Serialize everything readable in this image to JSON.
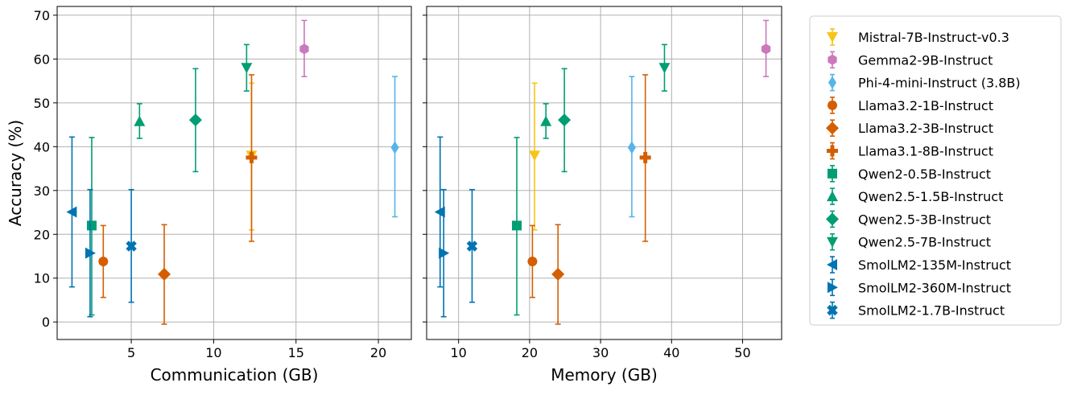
{
  "chart_data": {
    "type": "scatter",
    "error_bars": true,
    "grid": true,
    "ylabel": "Accuracy (%)",
    "ylim": [
      -4,
      72
    ],
    "yticks": [
      0,
      10,
      20,
      30,
      40,
      50,
      60,
      70
    ],
    "legend_position": "right, outside",
    "panels": [
      {
        "xlabel": "Communication (GB)",
        "xlim": [
          0.5,
          22
        ],
        "xticks": [
          5,
          10,
          15,
          20
        ],
        "points": [
          {
            "series": "Mistral-7B-Instruct-v0.3",
            "x": 12.3,
            "y": 38.0,
            "lo": 21.0,
            "hi": 54.5
          },
          {
            "series": "Gemma2-9B-Instruct",
            "x": 15.5,
            "y": 62.3,
            "lo": 56.0,
            "hi": 68.8
          },
          {
            "series": "Phi-4-mini-Instruct (3.8B)",
            "x": 21.0,
            "y": 39.8,
            "lo": 24.0,
            "hi": 56.0
          },
          {
            "series": "Llama3.2-1B-Instruct",
            "x": 3.3,
            "y": 13.8,
            "lo": 5.6,
            "hi": 22.0
          },
          {
            "series": "Llama3.2-3B-Instruct",
            "x": 7.0,
            "y": 10.9,
            "lo": -0.5,
            "hi": 22.2
          },
          {
            "series": "Llama3.1-8B-Instruct",
            "x": 12.3,
            "y": 37.5,
            "lo": 18.4,
            "hi": 56.4
          },
          {
            "series": "Qwen2-0.5B-Instruct",
            "x": 2.6,
            "y": 22.0,
            "lo": 1.6,
            "hi": 42.1
          },
          {
            "series": "Qwen2.5-1.5B-Instruct",
            "x": 5.5,
            "y": 45.8,
            "lo": 41.9,
            "hi": 49.8
          },
          {
            "series": "Qwen2.5-3B-Instruct",
            "x": 8.9,
            "y": 46.1,
            "lo": 34.3,
            "hi": 57.8
          },
          {
            "series": "Qwen2.5-7B-Instruct",
            "x": 12.0,
            "y": 58.0,
            "lo": 52.7,
            "hi": 63.3
          },
          {
            "series": "SmolLM2-135M-Instruct",
            "x": 1.4,
            "y": 25.1,
            "lo": 8.0,
            "hi": 42.2
          },
          {
            "series": "SmolLM2-360M-Instruct",
            "x": 2.5,
            "y": 15.7,
            "lo": 1.2,
            "hi": 30.2
          },
          {
            "series": "SmolLM2-1.7B-Instruct",
            "x": 5.0,
            "y": 17.3,
            "lo": 4.5,
            "hi": 30.2
          }
        ]
      },
      {
        "xlabel": "Memory (GB)",
        "xlim": [
          5.5,
          55.5
        ],
        "xticks": [
          10,
          20,
          30,
          40,
          50
        ],
        "points": [
          {
            "series": "Mistral-7B-Instruct-v0.3",
            "x": 20.7,
            "y": 38.0,
            "lo": 21.0,
            "hi": 54.5
          },
          {
            "series": "Gemma2-9B-Instruct",
            "x": 53.3,
            "y": 62.3,
            "lo": 56.0,
            "hi": 68.8
          },
          {
            "series": "Phi-4-mini-Instruct (3.8B)",
            "x": 34.4,
            "y": 39.8,
            "lo": 24.0,
            "hi": 56.0
          },
          {
            "series": "Llama3.2-1B-Instruct",
            "x": 20.4,
            "y": 13.8,
            "lo": 5.6,
            "hi": 22.0
          },
          {
            "series": "Llama3.2-3B-Instruct",
            "x": 24.0,
            "y": 10.9,
            "lo": -0.5,
            "hi": 22.2
          },
          {
            "series": "Llama3.1-8B-Instruct",
            "x": 36.3,
            "y": 37.5,
            "lo": 18.4,
            "hi": 56.4
          },
          {
            "series": "Qwen2-0.5B-Instruct",
            "x": 18.2,
            "y": 22.0,
            "lo": 1.6,
            "hi": 42.1
          },
          {
            "series": "Qwen2.5-1.5B-Instruct",
            "x": 22.3,
            "y": 45.8,
            "lo": 41.9,
            "hi": 49.8
          },
          {
            "series": "Qwen2.5-3B-Instruct",
            "x": 24.9,
            "y": 46.1,
            "lo": 34.3,
            "hi": 57.8
          },
          {
            "series": "Qwen2.5-7B-Instruct",
            "x": 39.0,
            "y": 58.0,
            "lo": 52.7,
            "hi": 63.3
          },
          {
            "series": "SmolLM2-135M-Instruct",
            "x": 7.4,
            "y": 25.1,
            "lo": 8.0,
            "hi": 42.2
          },
          {
            "series": "SmolLM2-360M-Instruct",
            "x": 7.9,
            "y": 15.7,
            "lo": 1.2,
            "hi": 30.2
          },
          {
            "series": "SmolLM2-1.7B-Instruct",
            "x": 11.9,
            "y": 17.3,
            "lo": 4.5,
            "hi": 30.2
          }
        ]
      }
    ],
    "series": [
      {
        "name": "Mistral-7B-Instruct-v0.3",
        "color": "#f5c518",
        "marker": "triangle-down"
      },
      {
        "name": "Gemma2-9B-Instruct",
        "color": "#cc78bc",
        "marker": "hexagon"
      },
      {
        "name": "Phi-4-mini-Instruct (3.8B)",
        "color": "#56b4e9",
        "marker": "thin-diamond"
      },
      {
        "name": "Llama3.2-1B-Instruct",
        "color": "#d55e00",
        "marker": "circle"
      },
      {
        "name": "Llama3.2-3B-Instruct",
        "color": "#d55e00",
        "marker": "diamond"
      },
      {
        "name": "Llama3.1-8B-Instruct",
        "color": "#d55e00",
        "marker": "plus-filled"
      },
      {
        "name": "Qwen2-0.5B-Instruct",
        "color": "#029e73",
        "marker": "square"
      },
      {
        "name": "Qwen2.5-1.5B-Instruct",
        "color": "#029e73",
        "marker": "triangle-up"
      },
      {
        "name": "Qwen2.5-3B-Instruct",
        "color": "#029e73",
        "marker": "diamond"
      },
      {
        "name": "Qwen2.5-7B-Instruct",
        "color": "#029e73",
        "marker": "triangle-down"
      },
      {
        "name": "SmolLM2-135M-Instruct",
        "color": "#0173b2",
        "marker": "triangle-left"
      },
      {
        "name": "SmolLM2-360M-Instruct",
        "color": "#0173b2",
        "marker": "triangle-right"
      },
      {
        "name": "SmolLM2-1.7B-Instruct",
        "color": "#0173b2",
        "marker": "x-filled"
      }
    ]
  }
}
